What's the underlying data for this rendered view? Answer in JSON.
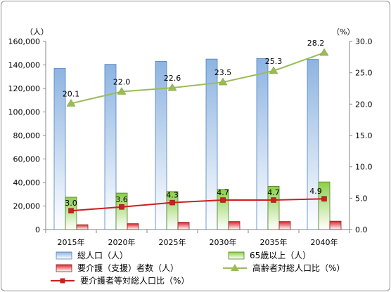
{
  "chart_data": {
    "type": "bar",
    "categories": [
      "2015年",
      "2020年",
      "2025年",
      "2030年",
      "2035年",
      "2040年"
    ],
    "left_axis": {
      "unit": "（人）",
      "range": [
        0,
        160000
      ],
      "ticks": [
        "0",
        "20,000",
        "40,000",
        "60,000",
        "80,000",
        "100,000",
        "120,000",
        "140,000",
        "160,000"
      ]
    },
    "right_axis": {
      "unit": "（%）",
      "range": [
        0,
        30
      ],
      "ticks": [
        "0.0",
        "5.0",
        "10.0",
        "15.0",
        "20.0",
        "25.0",
        "30.0"
      ]
    },
    "series": [
      {
        "name": "総人口（人）",
        "type": "bar",
        "axis": "left",
        "color": "#8db4e2",
        "values": [
          137000,
          140500,
          143000,
          145000,
          145500,
          144700
        ]
      },
      {
        "name": "65歳以上（人）",
        "type": "bar",
        "axis": "left",
        "color": "#92d050",
        "values": [
          27500,
          31000,
          32300,
          34100,
          36800,
          40500
        ]
      },
      {
        "name": "要介護（支援）者数（人）",
        "type": "bar",
        "axis": "left",
        "color": "#e8474d",
        "values": [
          4100,
          5000,
          6200,
          6800,
          6800,
          7100
        ]
      },
      {
        "name": "高齢者対総人口比（%）",
        "type": "line",
        "axis": "right",
        "color": "#9bbb59",
        "marker": "triangle",
        "values": [
          20.1,
          22.0,
          22.6,
          23.5,
          25.3,
          28.2
        ],
        "labels": [
          "20.1",
          "22.0",
          "22.6",
          "23.5",
          "25.3",
          "28.2"
        ]
      },
      {
        "name": "要介護者等対総人口比（%）",
        "type": "line",
        "axis": "right",
        "color": "#cc1f1f",
        "marker": "square",
        "values": [
          3.0,
          3.6,
          4.3,
          4.7,
          4.7,
          4.9
        ],
        "labels": [
          "3.0",
          "3.6",
          "4.3",
          "4.7",
          "4.7",
          "4.9"
        ]
      }
    ],
    "legend_position": "bottom",
    "grid": false
  }
}
